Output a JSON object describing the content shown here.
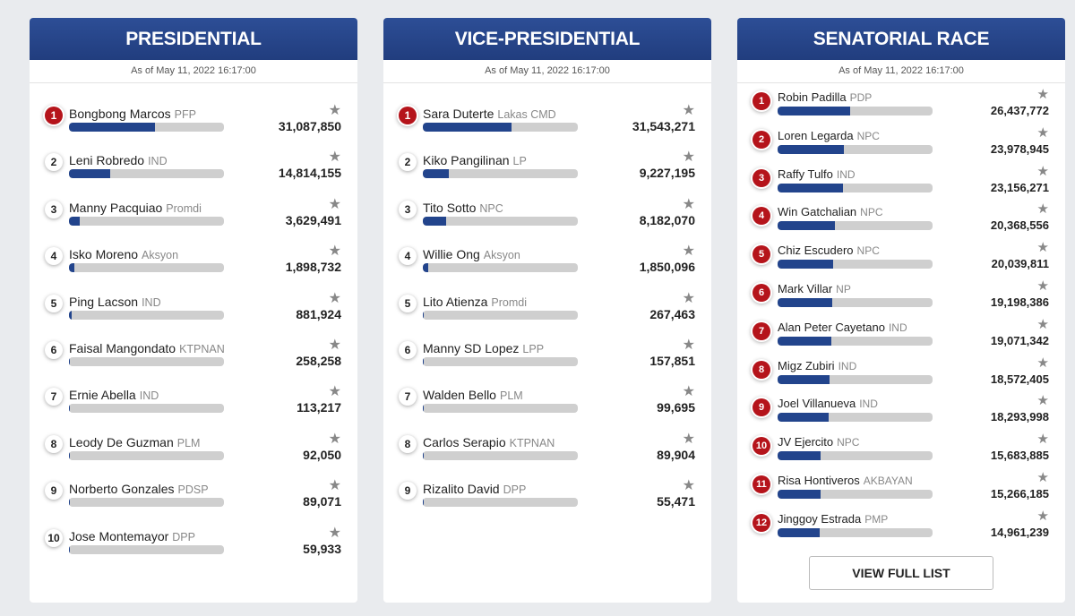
{
  "panels": [
    {
      "title": "PRESIDENTIAL",
      "as_of": "As of May 11, 2022 16:17:00",
      "candidates": [
        {
          "rank": "1",
          "name": "Bongbong Marcos",
          "party": "PFP",
          "votes": "31,087,850",
          "share": 0.555
        },
        {
          "rank": "2",
          "name": "Leni Robredo",
          "party": "IND",
          "votes": "14,814,155",
          "share": 0.265
        },
        {
          "rank": "3",
          "name": "Manny Pacquiao",
          "party": "Promdi",
          "votes": "3,629,491",
          "share": 0.07
        },
        {
          "rank": "4",
          "name": "Isko Moreno",
          "party": "Aksyon",
          "votes": "1,898,732",
          "share": 0.035
        },
        {
          "rank": "5",
          "name": "Ping Lacson",
          "party": "IND",
          "votes": "881,924",
          "share": 0.016
        },
        {
          "rank": "6",
          "name": "Faisal Mangondato",
          "party": "KTPNAN",
          "votes": "258,258",
          "share": 0.008
        },
        {
          "rank": "7",
          "name": "Ernie Abella",
          "party": "IND",
          "votes": "113,217",
          "share": 0.006
        },
        {
          "rank": "8",
          "name": "Leody De Guzman",
          "party": "PLM",
          "votes": "92,050",
          "share": 0.006
        },
        {
          "rank": "9",
          "name": "Norberto Gonzales",
          "party": "PDSP",
          "votes": "89,071",
          "share": 0.006
        },
        {
          "rank": "10",
          "name": "Jose Montemayor",
          "party": "DPP",
          "votes": "59,933",
          "share": 0.006
        }
      ]
    },
    {
      "title": "VICE-PRESIDENTIAL",
      "as_of": "As of May 11, 2022 16:17:00",
      "candidates": [
        {
          "rank": "1",
          "name": "Sara Duterte",
          "party": "Lakas CMD",
          "votes": "31,543,271",
          "share": 0.57
        },
        {
          "rank": "2",
          "name": "Kiko Pangilinan",
          "party": "LP",
          "votes": "9,227,195",
          "share": 0.17
        },
        {
          "rank": "3",
          "name": "Tito Sotto",
          "party": "NPC",
          "votes": "8,182,070",
          "share": 0.15
        },
        {
          "rank": "4",
          "name": "Willie Ong",
          "party": "Aksyon",
          "votes": "1,850,096",
          "share": 0.035
        },
        {
          "rank": "5",
          "name": "Lito Atienza",
          "party": "Promdi",
          "votes": "267,463",
          "share": 0.008
        },
        {
          "rank": "6",
          "name": "Manny SD Lopez",
          "party": "LPP",
          "votes": "157,851",
          "share": 0.006
        },
        {
          "rank": "7",
          "name": "Walden Bello",
          "party": "PLM",
          "votes": "99,695",
          "share": 0.006
        },
        {
          "rank": "8",
          "name": "Carlos Serapio",
          "party": "KTPNAN",
          "votes": "89,904",
          "share": 0.006
        },
        {
          "rank": "9",
          "name": "Rizalito David",
          "party": "DPP",
          "votes": "55,471",
          "share": 0.006
        }
      ]
    },
    {
      "title": "SENATORIAL RACE",
      "as_of": "As of May 11, 2022 16:17:00",
      "button": "VIEW FULL LIST",
      "candidates": [
        {
          "rank": "1",
          "name": "Robin Padilla",
          "party": "PDP",
          "votes": "26,437,772",
          "share": 0.47
        },
        {
          "rank": "2",
          "name": "Loren Legarda",
          "party": "NPC",
          "votes": "23,978,945",
          "share": 0.43
        },
        {
          "rank": "3",
          "name": "Raffy Tulfo",
          "party": "IND",
          "votes": "23,156,271",
          "share": 0.42
        },
        {
          "rank": "4",
          "name": "Win Gatchalian",
          "party": "NPC",
          "votes": "20,368,556",
          "share": 0.37
        },
        {
          "rank": "5",
          "name": "Chiz Escudero",
          "party": "NPC",
          "votes": "20,039,811",
          "share": 0.36
        },
        {
          "rank": "6",
          "name": "Mark Villar",
          "party": "NP",
          "votes": "19,198,386",
          "share": 0.35
        },
        {
          "rank": "7",
          "name": "Alan Peter Cayetano",
          "party": "IND",
          "votes": "19,071,342",
          "share": 0.345
        },
        {
          "rank": "8",
          "name": "Migz Zubiri",
          "party": "IND",
          "votes": "18,572,405",
          "share": 0.335
        },
        {
          "rank": "9",
          "name": "Joel Villanueva",
          "party": "IND",
          "votes": "18,293,998",
          "share": 0.33
        },
        {
          "rank": "10",
          "name": "JV Ejercito",
          "party": "NPC",
          "votes": "15,683,885",
          "share": 0.28
        },
        {
          "rank": "11",
          "name": "Risa Hontiveros",
          "party": "AKBAYAN",
          "votes": "15,266,185",
          "share": 0.275
        },
        {
          "rank": "12",
          "name": "Jinggoy Estrada",
          "party": "PMP",
          "votes": "14,961,239",
          "share": 0.27
        }
      ]
    }
  ],
  "icons": {
    "star": "star-icon"
  },
  "colors": {
    "header": "#2a4a90",
    "bar_fill": "#22448c",
    "bar_track": "#cfcfcf",
    "rank_badge_red": "#b5141b"
  }
}
